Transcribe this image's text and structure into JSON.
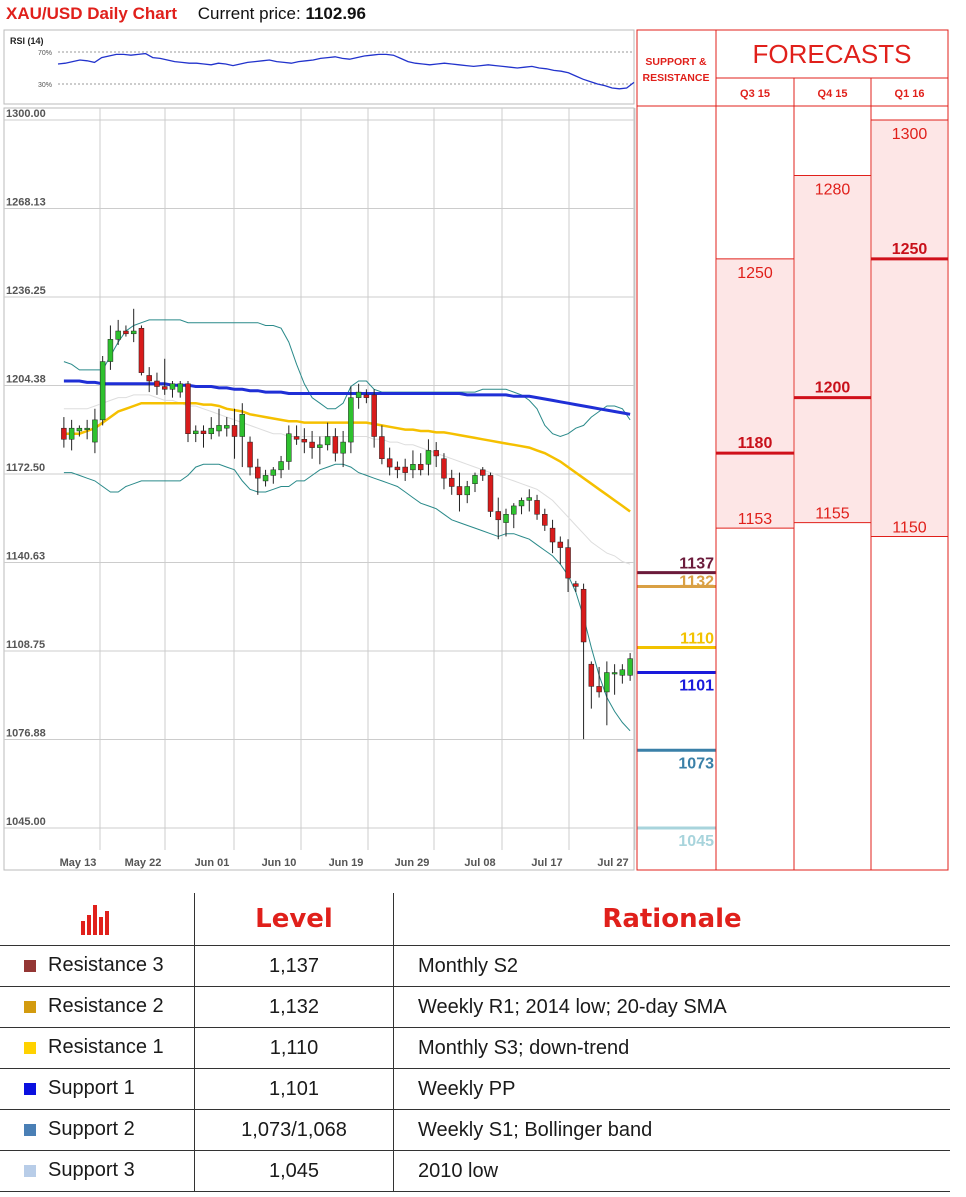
{
  "header": {
    "title": "XAU/USD Daily Chart",
    "price_label": "Current price:",
    "price_value": "1102.96"
  },
  "chart_data": {
    "type": "candlestick",
    "ylim": [
      1045.0,
      1300.0
    ],
    "y_ticks": [
      "1300.00",
      "1268.13",
      "1236.25",
      "1204.38",
      "1172.50",
      "1140.63",
      "1108.75",
      "1076.88",
      "1045.00"
    ],
    "x_ticks": [
      "May 13",
      "May 22",
      "Jun 01",
      "Jun 10",
      "Jun 19",
      "Jun 29",
      "Jul 08",
      "Jul 17",
      "Jul 27"
    ],
    "rsi": {
      "label": "RSI (14)",
      "levels": [
        "70%",
        "30%"
      ],
      "values": [
        55,
        56,
        58,
        60,
        59,
        57,
        63,
        65,
        67,
        67,
        66,
        67,
        68,
        63,
        62,
        60,
        58,
        57,
        56,
        56,
        55,
        54,
        56,
        55,
        53,
        55,
        57,
        58,
        59,
        60,
        58,
        57,
        56,
        58,
        59,
        60,
        62,
        63,
        64,
        62,
        61,
        63,
        65,
        66,
        67,
        67,
        66,
        62,
        58,
        56,
        55,
        54,
        55,
        56,
        55,
        54,
        53,
        52,
        53,
        54,
        53,
        52,
        51,
        50,
        51,
        52,
        50,
        49,
        47,
        46,
        44,
        40,
        36,
        33,
        30,
        28,
        25,
        24,
        25,
        32
      ]
    },
    "candles": [
      {
        "o": 1189,
        "h": 1193,
        "l": 1182,
        "c": 1185
      },
      {
        "o": 1185,
        "h": 1192,
        "l": 1181,
        "c": 1189
      },
      {
        "o": 1188,
        "h": 1190,
        "l": 1186,
        "c": 1189
      },
      {
        "o": 1189,
        "h": 1192,
        "l": 1185,
        "c": 1189
      },
      {
        "o": 1184,
        "h": 1196,
        "l": 1180,
        "c": 1192
      },
      {
        "o": 1192,
        "h": 1215,
        "l": 1190,
        "c": 1213
      },
      {
        "o": 1213,
        "h": 1226,
        "l": 1210,
        "c": 1221
      },
      {
        "o": 1221,
        "h": 1228,
        "l": 1219,
        "c": 1224
      },
      {
        "o": 1224,
        "h": 1226,
        "l": 1222,
        "c": 1223
      },
      {
        "o": 1223,
        "h": 1232,
        "l": 1220,
        "c": 1224
      },
      {
        "o": 1225,
        "h": 1226,
        "l": 1208,
        "c": 1209
      },
      {
        "o": 1208,
        "h": 1211,
        "l": 1202,
        "c": 1206
      },
      {
        "o": 1206,
        "h": 1209,
        "l": 1201,
        "c": 1204
      },
      {
        "o": 1204,
        "h": 1214,
        "l": 1201,
        "c": 1203
      },
      {
        "o": 1203,
        "h": 1206,
        "l": 1200,
        "c": 1205
      },
      {
        "o": 1202,
        "h": 1206,
        "l": 1200,
        "c": 1205
      },
      {
        "o": 1205,
        "h": 1206,
        "l": 1184,
        "c": 1187
      },
      {
        "o": 1187,
        "h": 1190,
        "l": 1184,
        "c": 1188
      },
      {
        "o": 1188,
        "h": 1190,
        "l": 1182,
        "c": 1187
      },
      {
        "o": 1187,
        "h": 1193,
        "l": 1185,
        "c": 1189
      },
      {
        "o": 1188,
        "h": 1196,
        "l": 1186,
        "c": 1190
      },
      {
        "o": 1189,
        "h": 1193,
        "l": 1186,
        "c": 1190
      },
      {
        "o": 1190,
        "h": 1196,
        "l": 1178,
        "c": 1186
      },
      {
        "o": 1186,
        "h": 1198,
        "l": 1175,
        "c": 1194
      },
      {
        "o": 1184,
        "h": 1186,
        "l": 1172,
        "c": 1175
      },
      {
        "o": 1175,
        "h": 1178,
        "l": 1165,
        "c": 1171
      },
      {
        "o": 1170,
        "h": 1174,
        "l": 1168,
        "c": 1172
      },
      {
        "o": 1172,
        "h": 1175,
        "l": 1169,
        "c": 1174
      },
      {
        "o": 1174,
        "h": 1179,
        "l": 1171,
        "c": 1177
      },
      {
        "o": 1177,
        "h": 1190,
        "l": 1174,
        "c": 1187
      },
      {
        "o": 1186,
        "h": 1190,
        "l": 1183,
        "c": 1185
      },
      {
        "o": 1185,
        "h": 1189,
        "l": 1180,
        "c": 1184
      },
      {
        "o": 1184,
        "h": 1188,
        "l": 1178,
        "c": 1182
      },
      {
        "o": 1182,
        "h": 1186,
        "l": 1176,
        "c": 1183
      },
      {
        "o": 1183,
        "h": 1191,
        "l": 1181,
        "c": 1186
      },
      {
        "o": 1186,
        "h": 1189,
        "l": 1177,
        "c": 1180
      },
      {
        "o": 1180,
        "h": 1188,
        "l": 1175,
        "c": 1184
      },
      {
        "o": 1184,
        "h": 1204,
        "l": 1180,
        "c": 1200
      },
      {
        "o": 1200,
        "h": 1205,
        "l": 1196,
        "c": 1202
      },
      {
        "o": 1201,
        "h": 1203,
        "l": 1198,
        "c": 1200
      },
      {
        "o": 1201,
        "h": 1203,
        "l": 1182,
        "c": 1186
      },
      {
        "o": 1186,
        "h": 1190,
        "l": 1176,
        "c": 1178
      },
      {
        "o": 1178,
        "h": 1182,
        "l": 1172,
        "c": 1175
      },
      {
        "o": 1175,
        "h": 1177,
        "l": 1171,
        "c": 1174
      },
      {
        "o": 1175,
        "h": 1178,
        "l": 1170,
        "c": 1173
      },
      {
        "o": 1174,
        "h": 1181,
        "l": 1171,
        "c": 1176
      },
      {
        "o": 1176,
        "h": 1180,
        "l": 1172,
        "c": 1174
      },
      {
        "o": 1176,
        "h": 1185,
        "l": 1172,
        "c": 1181
      },
      {
        "o": 1181,
        "h": 1184,
        "l": 1175,
        "c": 1179
      },
      {
        "o": 1178,
        "h": 1180,
        "l": 1167,
        "c": 1171
      },
      {
        "o": 1171,
        "h": 1174,
        "l": 1165,
        "c": 1168
      },
      {
        "o": 1168,
        "h": 1173,
        "l": 1159,
        "c": 1165
      },
      {
        "o": 1165,
        "h": 1170,
        "l": 1162,
        "c": 1168
      },
      {
        "o": 1169,
        "h": 1173,
        "l": 1166,
        "c": 1172
      },
      {
        "o": 1174,
        "h": 1175,
        "l": 1170,
        "c": 1172
      },
      {
        "o": 1172,
        "h": 1173,
        "l": 1157,
        "c": 1159
      },
      {
        "o": 1159,
        "h": 1164,
        "l": 1149,
        "c": 1156
      },
      {
        "o": 1155,
        "h": 1160,
        "l": 1150,
        "c": 1158
      },
      {
        "o": 1158,
        "h": 1162,
        "l": 1153,
        "c": 1161
      },
      {
        "o": 1161,
        "h": 1164,
        "l": 1158,
        "c": 1163
      },
      {
        "o": 1163,
        "h": 1167,
        "l": 1159,
        "c": 1164
      },
      {
        "o": 1163,
        "h": 1165,
        "l": 1156,
        "c": 1158
      },
      {
        "o": 1158,
        "h": 1160,
        "l": 1152,
        "c": 1154
      },
      {
        "o": 1153,
        "h": 1156,
        "l": 1144,
        "c": 1148
      },
      {
        "o": 1148,
        "h": 1150,
        "l": 1140,
        "c": 1146
      },
      {
        "o": 1146,
        "h": 1149,
        "l": 1130,
        "c": 1135
      },
      {
        "o": 1133,
        "h": 1134,
        "l": 1130,
        "c": 1132
      },
      {
        "o": 1131,
        "h": 1133,
        "l": 1077,
        "c": 1112
      },
      {
        "o": 1104,
        "h": 1105,
        "l": 1088,
        "c": 1096
      },
      {
        "o": 1096,
        "h": 1103,
        "l": 1092,
        "c": 1094
      },
      {
        "o": 1094,
        "h": 1105,
        "l": 1082,
        "c": 1101
      },
      {
        "o": 1101,
        "h": 1104,
        "l": 1093,
        "c": 1101
      },
      {
        "o": 1100,
        "h": 1104,
        "l": 1097,
        "c": 1102
      },
      {
        "o": 1100,
        "h": 1108,
        "l": 1098,
        "c": 1106
      }
    ],
    "sma_blue": [
      1206,
      1206,
      1206,
      1205.5,
      1205.5,
      1205,
      1205,
      1205,
      1205,
      1205,
      1205,
      1205,
      1205,
      1205,
      1204.5,
      1204.5,
      1204.5,
      1204,
      1204,
      1204,
      1203.5,
      1203.5,
      1203,
      1203,
      1202.5,
      1202.5,
      1202,
      1202,
      1202,
      1201.5,
      1201.5,
      1201.5,
      1201.5,
      1201.5,
      1201.5,
      1201.5,
      1201.5,
      1201.5,
      1201.5,
      1201.5,
      1201.5,
      1201.5,
      1201.5,
      1201.5,
      1201.5,
      1201.5,
      1201.5,
      1201.5,
      1201.5,
      1201.5,
      1201.5,
      1201.5,
      1201,
      1201,
      1201,
      1201,
      1201,
      1201,
      1200.5,
      1200.5,
      1200.5,
      1200,
      1199.5,
      1199,
      1198.5,
      1198,
      1197.5,
      1197,
      1196.5,
      1196,
      1195.5,
      1195,
      1194.5,
      1194
    ],
    "sma_gold": [
      1187,
      1187,
      1187,
      1188,
      1189,
      1191,
      1193,
      1195,
      1196,
      1197,
      1198,
      1198,
      1198,
      1198,
      1198,
      1198,
      1198,
      1198,
      1197.5,
      1197.5,
      1197,
      1196,
      1195.5,
      1195,
      1194,
      1193.5,
      1193,
      1192.5,
      1192,
      1191.5,
      1191.5,
      1191,
      1191,
      1191,
      1191,
      1191,
      1191,
      1191,
      1191,
      1191,
      1190.5,
      1190,
      1189.5,
      1189,
      1188.5,
      1188.5,
      1188,
      1188,
      1187.5,
      1187.5,
      1187,
      1186.5,
      1186,
      1185.5,
      1185,
      1184.5,
      1184,
      1183.5,
      1183,
      1182.5,
      1182,
      1181,
      1180,
      1178.5,
      1177,
      1175,
      1173,
      1171,
      1169,
      1167,
      1165,
      1163,
      1161,
      1159
    ],
    "boll_upper": [
      1213,
      1212,
      1210,
      1210,
      1210,
      1210,
      1215,
      1220,
      1224,
      1226,
      1227,
      1228,
      1228,
      1228,
      1228,
      1228,
      1227,
      1227,
      1227,
      1227,
      1227,
      1227,
      1227,
      1227,
      1227,
      1227,
      1226,
      1226,
      1225,
      1220,
      1212,
      1205,
      1200,
      1198,
      1196,
      1196,
      1198,
      1204,
      1206,
      1206,
      1203,
      1202,
      1202,
      1202,
      1202,
      1202,
      1202,
      1202,
      1202,
      1202,
      1202,
      1202,
      1202,
      1202,
      1203,
      1203,
      1203,
      1203,
      1202,
      1201,
      1199,
      1196,
      1190,
      1187,
      1186,
      1187,
      1189,
      1190,
      1193,
      1195,
      1197,
      1197,
      1196,
      1192
    ],
    "boll_lower": [
      1173,
      1173,
      1172,
      1171,
      1170,
      1168,
      1166,
      1166,
      1168,
      1169,
      1170,
      1170,
      1170,
      1170,
      1170,
      1170,
      1172,
      1175,
      1176,
      1176,
      1176,
      1175,
      1174,
      1170,
      1167,
      1166,
      1166,
      1167,
      1168,
      1168,
      1170,
      1170,
      1172,
      1174,
      1175,
      1176,
      1176,
      1175,
      1173,
      1172,
      1171,
      1170,
      1169,
      1168,
      1166,
      1164,
      1162,
      1161,
      1160,
      1158,
      1156,
      1155,
      1154,
      1153,
      1152,
      1151,
      1150,
      1151,
      1151,
      1150,
      1149,
      1147,
      1145,
      1143,
      1140,
      1136,
      1130,
      1121,
      1110,
      1100,
      1092,
      1087,
      1083,
      1080
    ],
    "boll_mid_grey": [
      1196,
      1196,
      1196,
      1196,
      1197,
      1198,
      1199,
      1200,
      1200,
      1201,
      1201,
      1201,
      1200,
      1199,
      1199,
      1198,
      1197,
      1197,
      1196,
      1195,
      1194,
      1193,
      1192,
      1191,
      1190,
      1189,
      1188,
      1187,
      1187,
      1186,
      1186,
      1186,
      1186,
      1186,
      1186,
      1186,
      1186,
      1186,
      1186,
      1186,
      1185,
      1185,
      1184,
      1184,
      1183,
      1183,
      1182,
      1181,
      1180,
      1179,
      1178,
      1177,
      1176,
      1175,
      1174,
      1173,
      1172,
      1171,
      1170,
      1169,
      1168,
      1167,
      1165,
      1163,
      1160,
      1157,
      1154,
      1151,
      1148,
      1146,
      1144,
      1143,
      1141,
      1140
    ],
    "levels": [
      {
        "value": 1137,
        "label": "1137",
        "color": "#6b1b3b"
      },
      {
        "value": 1132,
        "label": "1132",
        "color": "#d9a044"
      },
      {
        "value": 1110,
        "label": "1110",
        "color": "#f2c200"
      },
      {
        "value": 1101,
        "label": "1101",
        "color": "#1a1adb"
      },
      {
        "value": 1073,
        "label": "1073",
        "color": "#3a80a8"
      },
      {
        "value": 1045,
        "label": "1045",
        "color": "#a8d4dc"
      }
    ]
  },
  "forecasts": {
    "title": "FORECASTS",
    "sr_header_line1": "SUPPORT &",
    "sr_header_line2": "RESISTANCE",
    "columns": [
      {
        "label": "Q3 15",
        "top": "1250",
        "mid": "1180",
        "low": "1153",
        "top_v": 1250,
        "mid_v": 1180,
        "low_v": 1153
      },
      {
        "label": "Q4 15",
        "top": "1280",
        "mid": "1200",
        "low": "1155",
        "top_v": 1280,
        "mid_v": 1200,
        "low_v": 1155
      },
      {
        "label": "Q1 16",
        "top": "1300",
        "mid": "1250",
        "low": "1150",
        "top_v": 1300,
        "mid_v": 1250,
        "low_v": 1150
      }
    ]
  },
  "table": {
    "col_level": "Level",
    "col_rationale": "Rationale",
    "rows": [
      {
        "name": "Resistance 3",
        "level": "1,137",
        "rationale": "Monthly S2",
        "color": "#943634"
      },
      {
        "name": "Resistance 2",
        "level": "1,132",
        "rationale": "Weekly R1; 2014 low; 20-day SMA",
        "color": "#d39b0f"
      },
      {
        "name": "Resistance 1",
        "level": "1,110",
        "rationale": "Monthly S3; down-trend",
        "color": "#ffd200"
      },
      {
        "name": "Support 1",
        "level": "1,101",
        "rationale": "Weekly PP",
        "color": "#0a10e0"
      },
      {
        "name": "Support 2",
        "level": "1,073/1,068",
        "rationale": "Weekly S1; Bollinger band",
        "color": "#4a7fb5"
      },
      {
        "name": "Support 3",
        "level": "1,045",
        "rationale": "2010 low",
        "color": "#b8cde8"
      }
    ]
  }
}
